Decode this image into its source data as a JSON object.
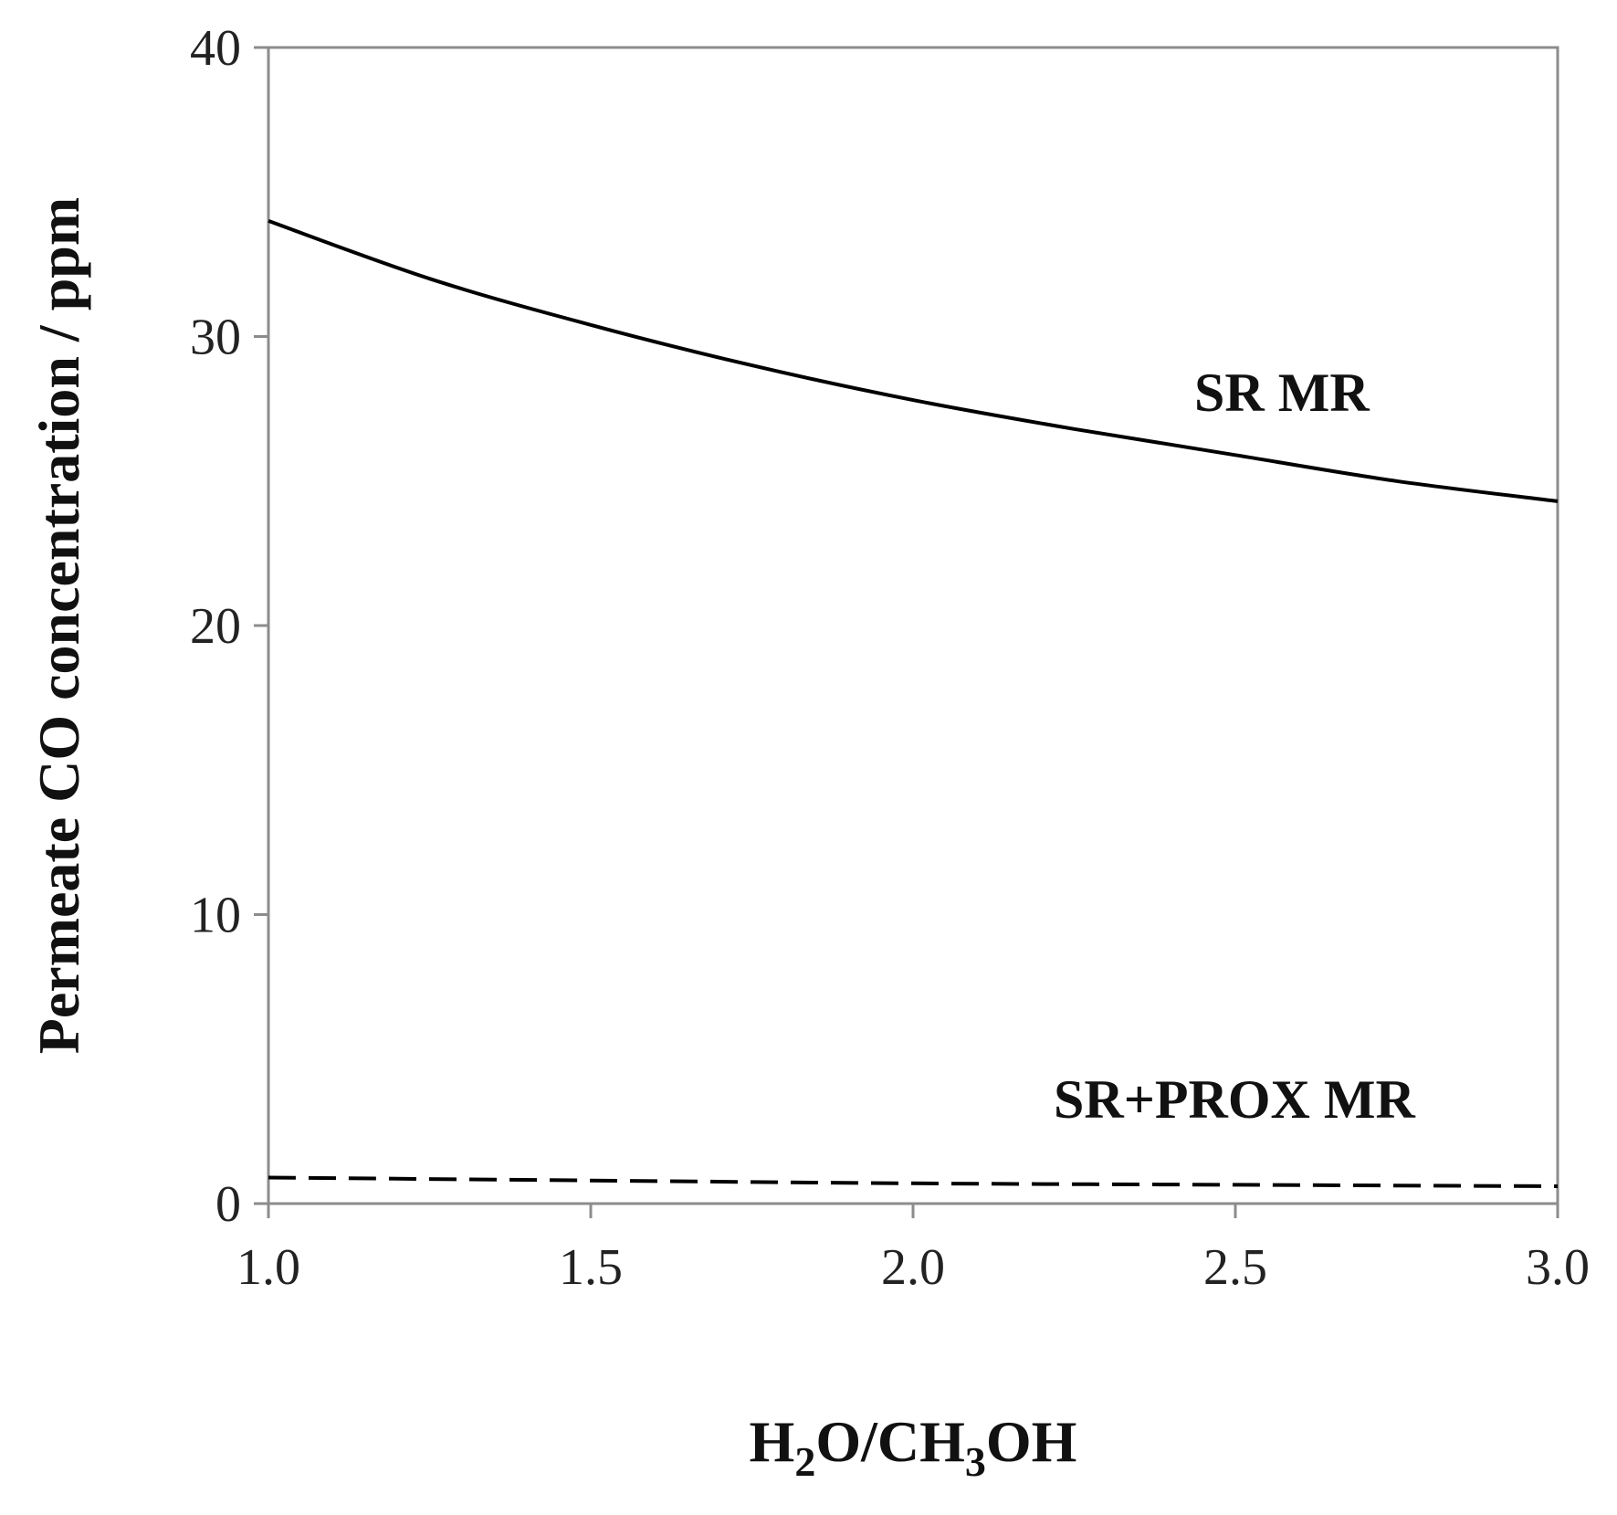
{
  "chart_data": {
    "type": "line",
    "xlabel": "H2O/CH3OH",
    "xlabel_parts": {
      "h": "H",
      "sub1": "2",
      "mid": "O/CH",
      "sub2": "3",
      "end": "OH"
    },
    "ylabel": "Permeate CO concentration / ppm",
    "xlim": [
      1.0,
      3.0
    ],
    "ylim": [
      0,
      40
    ],
    "x_ticks": [
      "1.0",
      "1.5",
      "2.0",
      "2.5",
      "3.0"
    ],
    "y_ticks": [
      "0",
      "10",
      "20",
      "30",
      "40"
    ],
    "grid": false,
    "series": [
      {
        "name": "SR MR",
        "style": "solid",
        "color": "#000000",
        "x": [
          1.0,
          1.25,
          1.5,
          1.75,
          2.0,
          2.25,
          2.5,
          2.75,
          3.0
        ],
        "y": [
          34.0,
          32.0,
          30.4,
          29.0,
          27.8,
          26.8,
          25.9,
          25.0,
          24.3
        ]
      },
      {
        "name": "SR+PROX MR",
        "style": "dashed",
        "color": "#000000",
        "x": [
          1.0,
          1.5,
          2.0,
          2.5,
          3.0
        ],
        "y": [
          0.9,
          0.8,
          0.7,
          0.65,
          0.6
        ]
      }
    ]
  }
}
